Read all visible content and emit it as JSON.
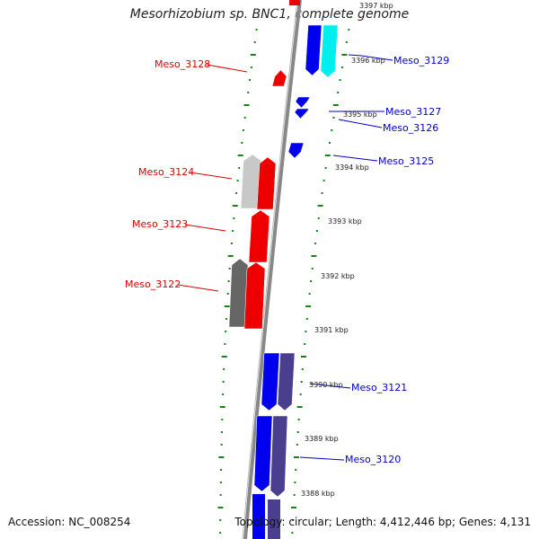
{
  "header": {
    "title": "Mesorhizobium sp. BNC1, complete genome"
  },
  "footer": {
    "accession": "Accession: NC_008254",
    "topology": "Topology: circular; Length: 4,412,446 bp; Genes: 4,131"
  },
  "colors": {
    "forward_cds": "#0000ee",
    "reverse_cds": "#ee0000",
    "forward_other": "#00eeee",
    "forward_alt": "#4a3f8f",
    "reverse_alt_light": "#c8c8c8",
    "reverse_alt_dark": "#666666",
    "backbone": "#888888",
    "gc_ticks": "#118811",
    "scale_text": "#222222"
  },
  "scale_labels": [
    "3397 kbp",
    "3396 kbp",
    "3395 kbp",
    "3394 kbp",
    "3393 kbp",
    "3392 kbp",
    "3391 kbp",
    "3390 kbp",
    "3389 kbp",
    "3388 kbp"
  ],
  "gene_labels": {
    "reverse": [
      "Meso_3128",
      "Meso_3124",
      "Meso_3123",
      "Meso_3122"
    ],
    "forward": [
      "Meso_3129",
      "Meso_3127",
      "Meso_3126",
      "Meso_3125",
      "Meso_3121",
      "Meso_3120"
    ]
  }
}
